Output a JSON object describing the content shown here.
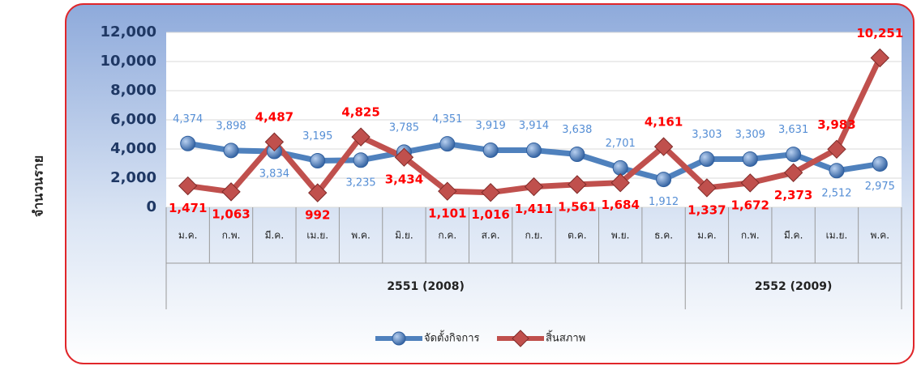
{
  "chart_data": {
    "type": "line",
    "y_label": "จำนวนราย",
    "groups": [
      {
        "label": "2551 (2008)",
        "categories": [
          "ม.ค.",
          "ก.พ.",
          "มี.ค.",
          "เม.ย.",
          "พ.ค.",
          "มิ.ย.",
          "ก.ค.",
          "ส.ค.",
          "ก.ย.",
          "ต.ค.",
          "พ.ย.",
          "ธ.ค."
        ]
      },
      {
        "label": "2552 (2009)",
        "categories": [
          "ม.ค.",
          "ก.พ.",
          "มี.ค.",
          "เม.ย.",
          "พ.ค."
        ]
      }
    ],
    "series": [
      {
        "name": "จัดตั้งกิจการ",
        "color": "#4f81bd",
        "values": [
          4374,
          3898,
          3834,
          3195,
          3235,
          3785,
          4351,
          3919,
          3914,
          3638,
          2701,
          1912,
          3303,
          3309,
          3631,
          2512,
          2975
        ],
        "value_labels": [
          "4,374",
          "3,898",
          "3,834",
          "3,195",
          "3,235",
          "3,785",
          "4,351",
          "3,919",
          "3,914",
          "3,638",
          "2,701",
          "1,912",
          "3,303",
          "3,309",
          "3,631",
          "2,512",
          "2,975"
        ]
      },
      {
        "name": "สิ้นสภาพ",
        "color": "#c0504d",
        "values": [
          1471,
          1063,
          4487,
          992,
          4825,
          3434,
          1101,
          1016,
          1411,
          1561,
          1684,
          4161,
          1337,
          1672,
          2373,
          3983,
          10251
        ],
        "value_labels": [
          "1,471",
          "1,063",
          "4,487",
          "992",
          "4,825",
          "3,434",
          "1,101",
          "1,016",
          "1,411",
          "1,561",
          "1,684",
          "4,161",
          "1,337",
          "1,672",
          "2,373",
          "3,983",
          "10,251"
        ]
      }
    ],
    "ylim": [
      0,
      12000
    ],
    "yticks": [
      0,
      {
        "value": 2000,
        "label": "2,000"
      },
      {
        "value": 4000,
        "label": "4,000"
      },
      {
        "value": 6000,
        "label": "6,000"
      },
      {
        "value": 8000,
        "label": "8,000"
      },
      {
        "value": 10000,
        "label": "10,000"
      },
      {
        "value": 12000,
        "label": "12,000"
      }
    ],
    "grid": true
  }
}
